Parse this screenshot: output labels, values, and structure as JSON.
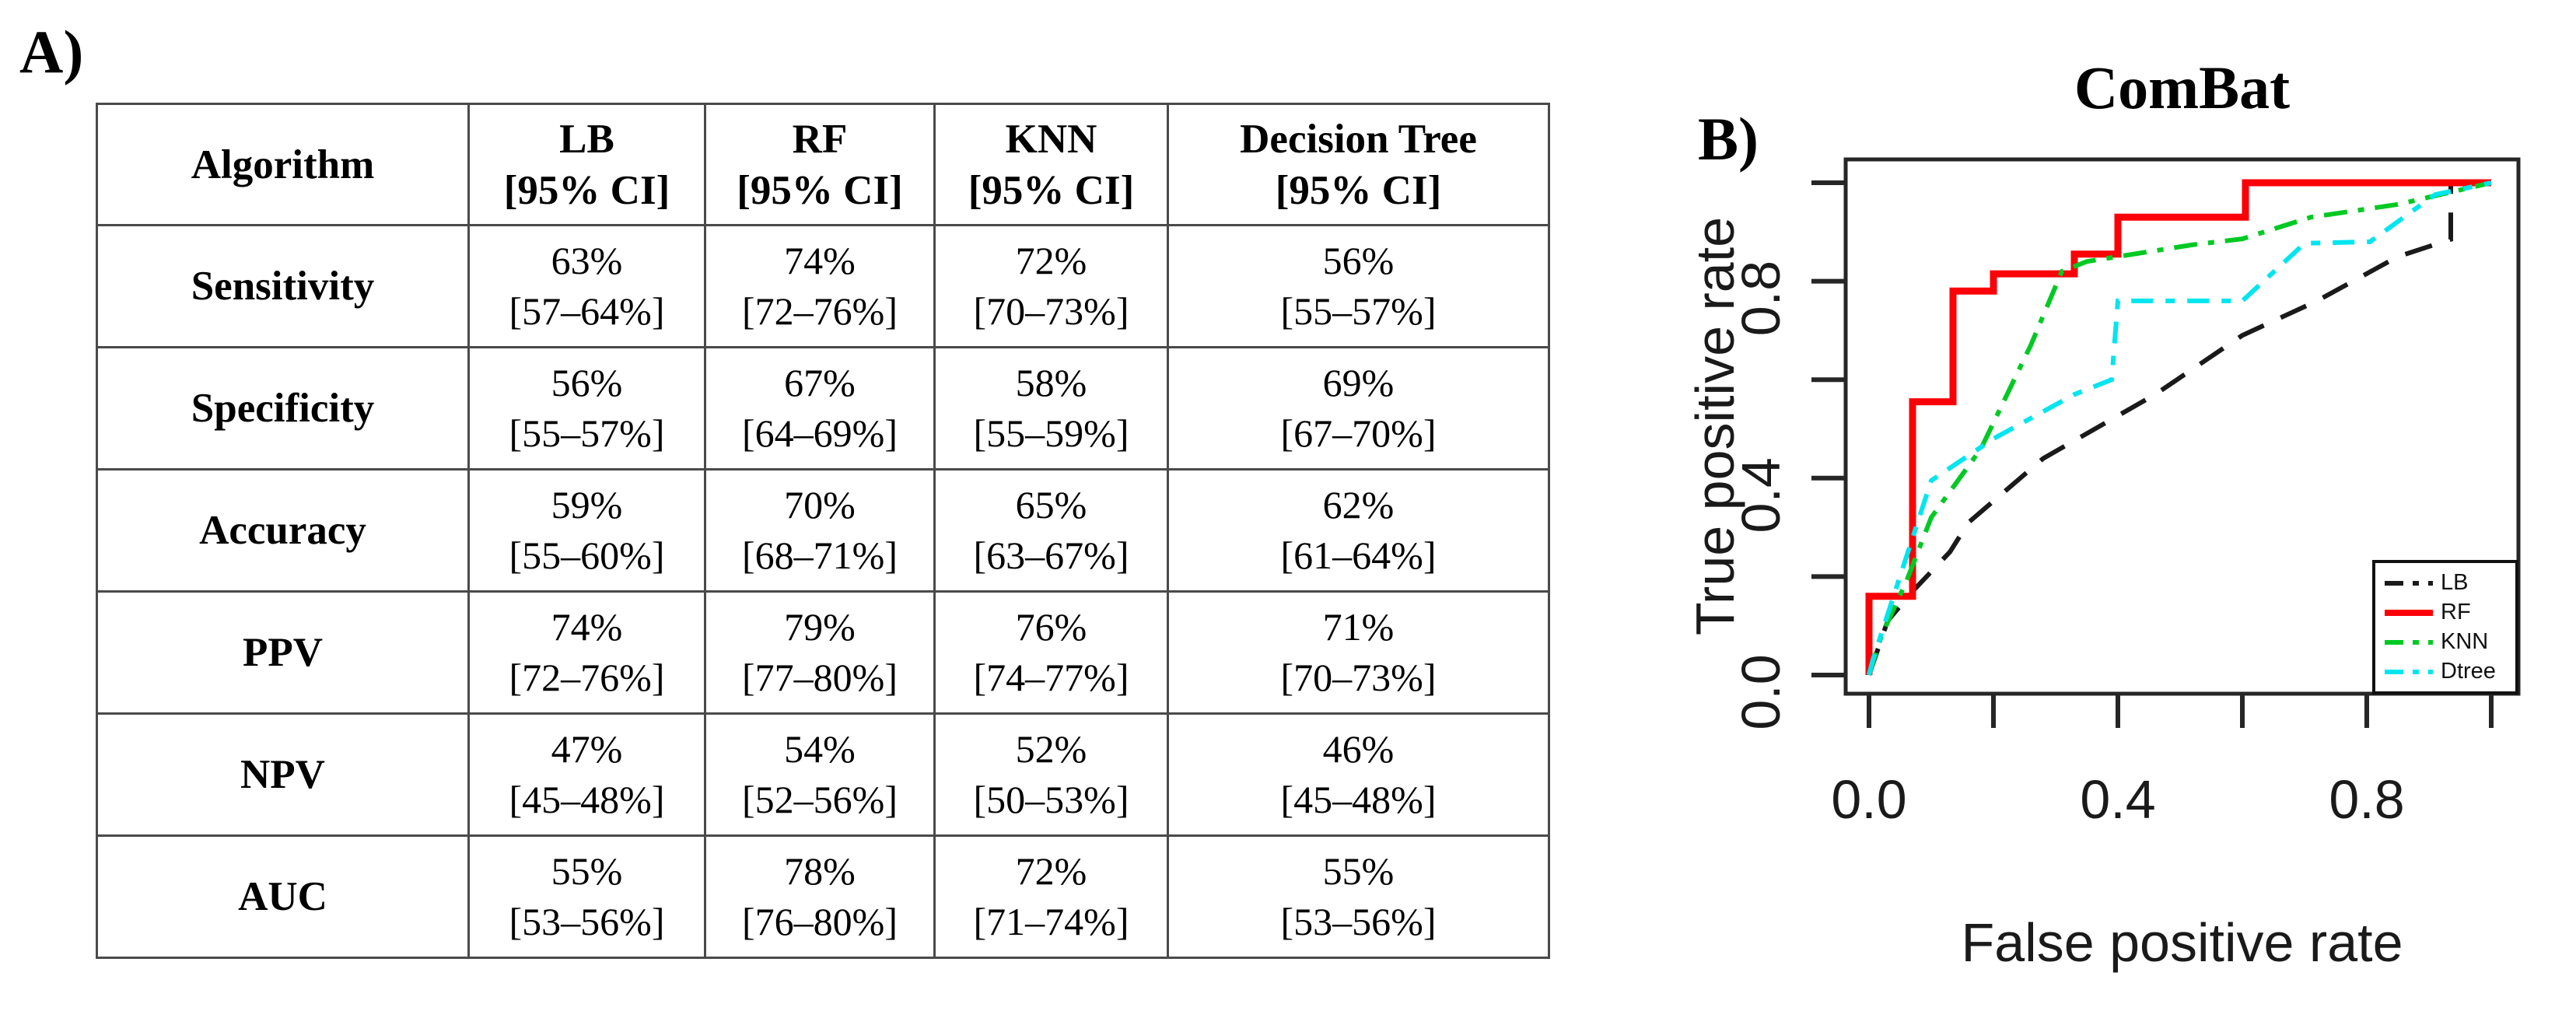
{
  "panelA": {
    "label": "A)"
  },
  "panelB": {
    "label": "B)"
  },
  "table": {
    "header": {
      "algorithm": "Algorithm",
      "columns": [
        {
          "name": "LB",
          "ci": "[95% CI]"
        },
        {
          "name": "RF",
          "ci": "[95% CI]"
        },
        {
          "name": "KNN",
          "ci": "[95% CI]"
        },
        {
          "name": "Decision Tree",
          "ci": "[95% CI]"
        }
      ]
    },
    "rows": [
      {
        "label": "Sensitivity",
        "cells": [
          {
            "value": "63%",
            "ci": "[57–64%]"
          },
          {
            "value": "74%",
            "ci": "[72–76%]"
          },
          {
            "value": "72%",
            "ci": "[70–73%]"
          },
          {
            "value": "56%",
            "ci": "[55–57%]"
          }
        ]
      },
      {
        "label": "Specificity",
        "cells": [
          {
            "value": "56%",
            "ci": "[55–57%]"
          },
          {
            "value": "67%",
            "ci": "[64–69%]"
          },
          {
            "value": "58%",
            "ci": "[55–59%]"
          },
          {
            "value": "69%",
            "ci": "[67–70%]"
          }
        ]
      },
      {
        "label": "Accuracy",
        "cells": [
          {
            "value": "59%",
            "ci": "[55–60%]"
          },
          {
            "value": "70%",
            "ci": "[68–71%]"
          },
          {
            "value": "65%",
            "ci": "[63–67%]"
          },
          {
            "value": "62%",
            "ci": "[61–64%]"
          }
        ]
      },
      {
        "label": "PPV",
        "cells": [
          {
            "value": "74%",
            "ci": "[72–76%]"
          },
          {
            "value": "79%",
            "ci": "[77–80%]"
          },
          {
            "value": "76%",
            "ci": "[74–77%]"
          },
          {
            "value": "71%",
            "ci": "[70–73%]"
          }
        ]
      },
      {
        "label": "NPV",
        "cells": [
          {
            "value": "47%",
            "ci": "[45–48%]"
          },
          {
            "value": "54%",
            "ci": "[52–56%]"
          },
          {
            "value": "52%",
            "ci": "[50–53%]"
          },
          {
            "value": "46%",
            "ci": "[45–48%]"
          }
        ]
      },
      {
        "label": "AUC",
        "cells": [
          {
            "value": "55%",
            "ci": "[53–56%]"
          },
          {
            "value": "78%",
            "ci": "[76–80%]"
          },
          {
            "value": "72%",
            "ci": "[71–74%]"
          },
          {
            "value": "55%",
            "ci": "[53–56%]"
          }
        ]
      }
    ]
  },
  "chart_data": {
    "type": "line",
    "title": "ComBat",
    "xlabel": "False positive rate",
    "ylabel": "True positive rate",
    "xlim": [
      0,
      1
    ],
    "ylim": [
      0,
      1
    ],
    "grid": false,
    "legend_position": "bottom-right",
    "xticks": [
      {
        "v": 0.0,
        "label": "0.0"
      },
      {
        "v": 0.2,
        "label": ""
      },
      {
        "v": 0.4,
        "label": "0.4"
      },
      {
        "v": 0.6,
        "label": ""
      },
      {
        "v": 0.8,
        "label": "0.8"
      },
      {
        "v": 1.0,
        "label": ""
      }
    ],
    "yticks": [
      {
        "v": 0.0,
        "label": "0.0"
      },
      {
        "v": 0.2,
        "label": ""
      },
      {
        "v": 0.4,
        "label": "0.4"
      },
      {
        "v": 0.6,
        "label": ""
      },
      {
        "v": 0.8,
        "label": "0.8"
      },
      {
        "v": 1.0,
        "label": ""
      }
    ],
    "series": [
      {
        "name": "LB",
        "color": "#1a1a1a",
        "style": "long-dash",
        "points": [
          [
            0,
            0
          ],
          [
            0.03,
            0.11
          ],
          [
            0.07,
            0.17
          ],
          [
            0.13,
            0.25
          ],
          [
            0.16,
            0.31
          ],
          [
            0.28,
            0.44
          ],
          [
            0.46,
            0.57
          ],
          [
            0.6,
            0.69
          ],
          [
            0.72,
            0.76
          ],
          [
            0.85,
            0.85
          ],
          [
            0.935,
            0.885
          ],
          [
            0.935,
            1.0
          ],
          [
            1.0,
            1.0
          ]
        ]
      },
      {
        "name": "RF",
        "color": "#fb0006",
        "style": "solid",
        "points": [
          [
            0,
            0
          ],
          [
            0,
            0.16
          ],
          [
            0.07,
            0.16
          ],
          [
            0.07,
            0.555
          ],
          [
            0.135,
            0.555
          ],
          [
            0.135,
            0.78
          ],
          [
            0.2,
            0.78
          ],
          [
            0.2,
            0.815
          ],
          [
            0.33,
            0.815
          ],
          [
            0.33,
            0.855
          ],
          [
            0.4,
            0.855
          ],
          [
            0.4,
            0.93
          ],
          [
            0.605,
            0.93
          ],
          [
            0.605,
            1.0
          ],
          [
            1.0,
            1.0
          ]
        ]
      },
      {
        "name": "KNN",
        "color": "#00c923",
        "style": "dash-dot",
        "points": [
          [
            0,
            0
          ],
          [
            0.02,
            0.08
          ],
          [
            0.06,
            0.19
          ],
          [
            0.1,
            0.32
          ],
          [
            0.18,
            0.46
          ],
          [
            0.26,
            0.67
          ],
          [
            0.31,
            0.82
          ],
          [
            0.35,
            0.84
          ],
          [
            0.52,
            0.874
          ],
          [
            0.6,
            0.886
          ],
          [
            0.71,
            0.93
          ],
          [
            0.85,
            0.956
          ],
          [
            1.0,
            1.0
          ]
        ]
      },
      {
        "name": "Dtree",
        "color": "#00e5ee",
        "style": "dash-dash",
        "points": [
          [
            0,
            0
          ],
          [
            0.006,
            0.03
          ],
          [
            0.1,
            0.395
          ],
          [
            0.2,
            0.48
          ],
          [
            0.33,
            0.57
          ],
          [
            0.39,
            0.6
          ],
          [
            0.4,
            0.76
          ],
          [
            0.6,
            0.76
          ],
          [
            0.7,
            0.877
          ],
          [
            0.805,
            0.88
          ],
          [
            0.91,
            0.976
          ],
          [
            1.0,
            1.0
          ]
        ]
      }
    ]
  }
}
